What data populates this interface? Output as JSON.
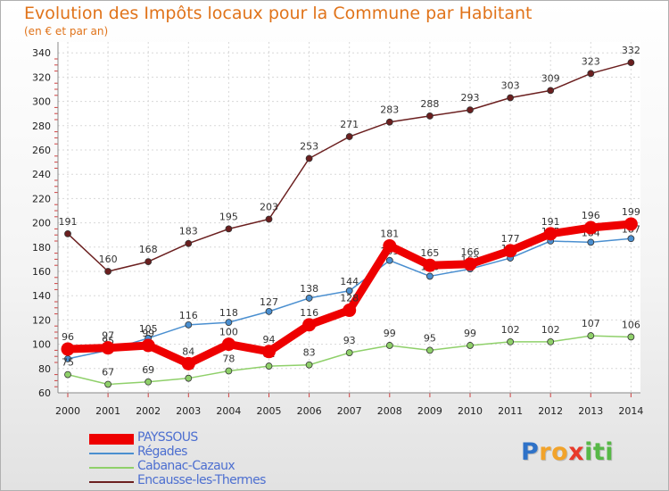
{
  "title": "Evolution des Impôts locaux pour la Commune par Habitant",
  "subtitle": "(en € et par an)",
  "logo": {
    "letters": [
      "P",
      "r",
      "o",
      "x",
      "i",
      "t",
      "i"
    ],
    "colors": [
      "#2e72c8",
      "#f2a32a",
      "#f2a32a",
      "#e83a2a",
      "#57b847",
      "#57b847",
      "#57b847"
    ]
  },
  "chart_data": {
    "type": "line",
    "title": "Evolution des Impôts locaux pour la Commune par Habitant",
    "subtitle": "(en € et par an)",
    "x": [
      "2000",
      "2001",
      "2002",
      "2003",
      "2004",
      "2005",
      "2006",
      "2007",
      "2008",
      "2009",
      "2010",
      "2011",
      "2012",
      "2013",
      "2014"
    ],
    "ylim": [
      60,
      340
    ],
    "yticks": [
      60,
      80,
      100,
      120,
      140,
      160,
      180,
      200,
      220,
      240,
      260,
      280,
      300,
      320,
      340
    ],
    "grid": true,
    "legend_position": "bottom-left",
    "series": [
      {
        "name": "Encausse-les-Thermes",
        "color": "#6b1f1f",
        "values": [
          191,
          160,
          168,
          183,
          195,
          203,
          253,
          271,
          283,
          288,
          293,
          303,
          309,
          323,
          332
        ],
        "labels": [
          "191",
          "160",
          "168",
          "183",
          "195",
          "203",
          "253",
          "271",
          "283",
          "288",
          "293",
          "303",
          "309",
          "323",
          "332"
        ]
      },
      {
        "name": "Régades",
        "color": "#4a8fd0",
        "values": [
          88,
          95,
          105,
          116,
          118,
          127,
          138,
          144,
          169,
          156,
          162,
          171,
          185,
          184,
          187
        ],
        "labels": [
          "88",
          "95",
          "105",
          "116",
          "118",
          "127",
          "138",
          "144",
          "169",
          "156",
          "162",
          "171",
          "185",
          "184",
          "187"
        ]
      },
      {
        "name": "Cabanac-Cazaux",
        "color": "#8fd06a",
        "values": [
          75,
          67,
          69,
          72,
          78,
          82,
          83,
          93,
          99,
          95,
          99,
          102,
          102,
          107,
          106
        ],
        "labels": [
          "75",
          "67",
          "69",
          "72",
          "78",
          "82",
          "83",
          "93",
          "99",
          "95",
          "99",
          "102",
          "102",
          "107",
          "106"
        ]
      },
      {
        "name": "PAYSSOUS",
        "color": "#ee0000",
        "values": [
          96,
          97,
          99,
          84,
          100,
          94,
          116,
          128,
          181,
          165,
          166,
          177,
          191,
          196,
          199
        ],
        "labels": [
          "96",
          "97",
          "99",
          "84",
          "100",
          "94",
          "116",
          "128",
          "181",
          "165",
          "166",
          "177",
          "191",
          "196",
          "199"
        ]
      }
    ],
    "legend": [
      "PAYSSOUS",
      "Régades",
      "Cabanac-Cazaux",
      "Encausse-les-Thermes"
    ]
  }
}
